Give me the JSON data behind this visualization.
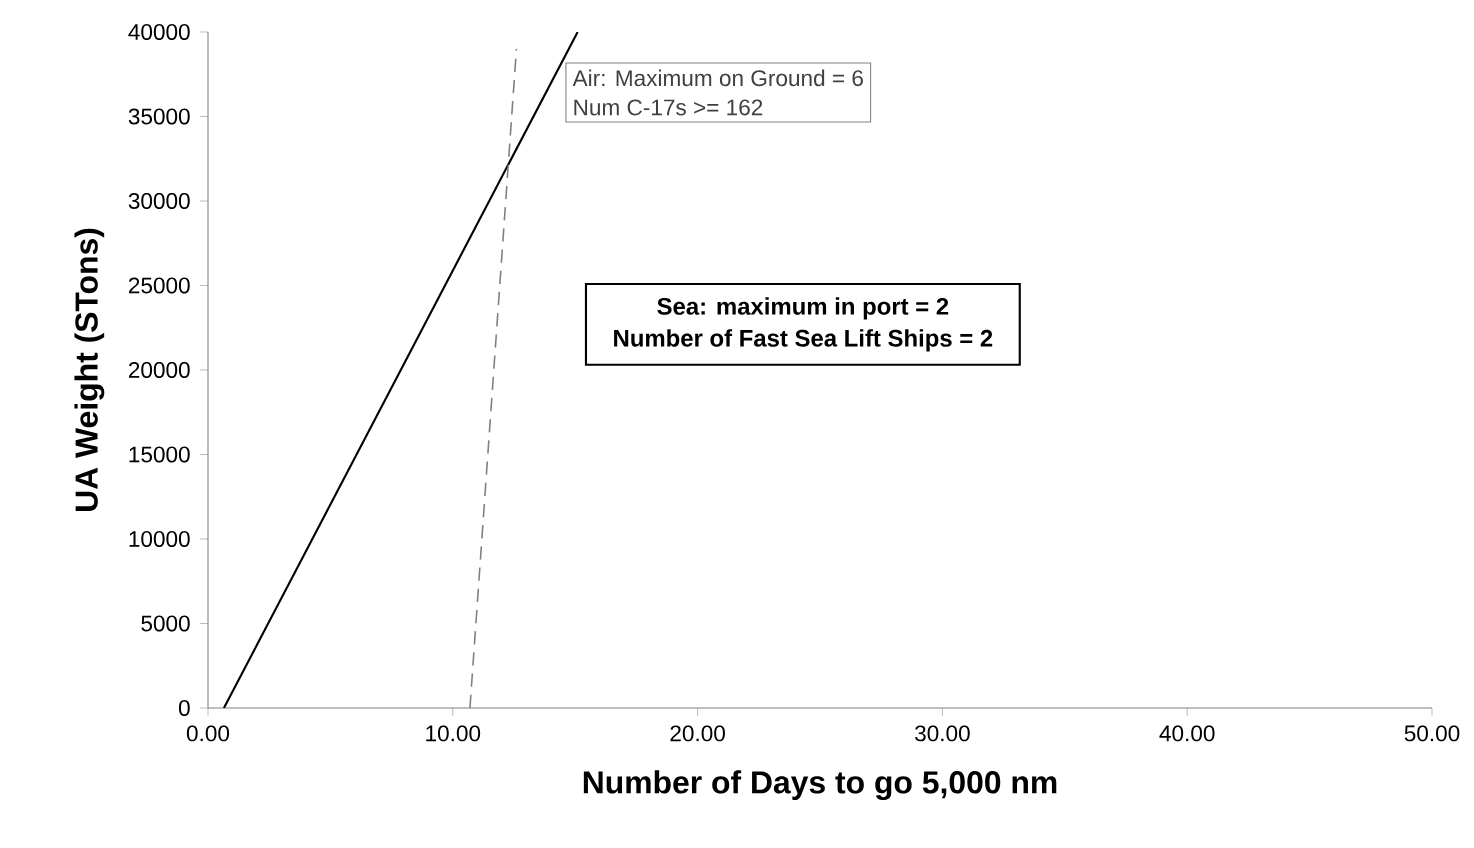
{
  "chart_data": {
    "type": "line",
    "xlabel": "Number of Days to go 5,000 nm",
    "ylabel": "UA Weight (STons)",
    "xlim": [
      0,
      50
    ],
    "ylim": [
      0,
      40000
    ],
    "xticks": [
      {
        "value": 0,
        "label": "0.00"
      },
      {
        "value": 10,
        "label": "10.00"
      },
      {
        "value": 20,
        "label": "20.00"
      },
      {
        "value": 30,
        "label": "30.00"
      },
      {
        "value": 40,
        "label": "40.00"
      },
      {
        "value": 50,
        "label": "50.00"
      }
    ],
    "yticks": [
      0,
      5000,
      10000,
      15000,
      20000,
      25000,
      30000,
      35000,
      40000
    ],
    "series": [
      {
        "color": "#000000",
        "line_style": "solid",
        "x": [
          0.65,
          15.1
        ],
        "values": [
          0,
          40000
        ]
      },
      {
        "color": "#808080",
        "line_style": "dashed",
        "x": [
          10.7,
          12.6
        ],
        "values": [
          0,
          39000
        ]
      }
    ],
    "annotations": [
      "Air:  Maximum on Ground = 6",
      "Num C-17s >=  162",
      "Sea: maximum in port = 2",
      "Number of Fast Sea Lift Ships = 2"
    ],
    "grid": false,
    "legend": false,
    "marker": "none"
  }
}
